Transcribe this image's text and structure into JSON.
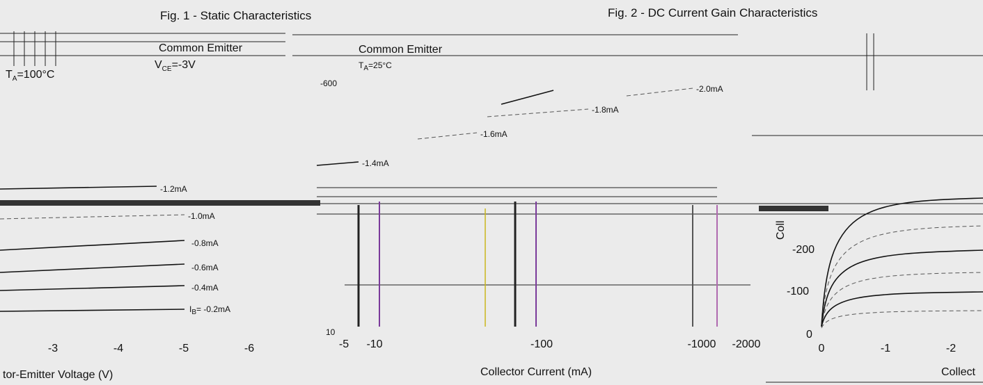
{
  "fig1": {
    "title": "Fig. 1 - Static Characteristics",
    "mode": "Common Emitter",
    "temp": {
      "sym": "T",
      "sub": "A",
      "rest": "=100°C"
    },
    "ib_labels": [
      "-1.2mA",
      "-1.0mA",
      "-0.8mA",
      "-0.6mA",
      "-0.4mA"
    ],
    "ib_first": {
      "sym": "I",
      "sub": "B",
      "rest": "= -0.2mA"
    },
    "x_ticks": [
      "-3",
      "-4",
      "-5",
      "-6"
    ],
    "x_label": "tor-Emitter Voltage (V)"
  },
  "fig2": {
    "title": "Fig. 2 - DC Current Gain Characteristics",
    "mode": "Common Emitter",
    "vce": {
      "sym": "V",
      "sub": "CE",
      "rest": "=-3V"
    },
    "temp": {
      "sym": "T",
      "sub": "A",
      "rest": "=25°C"
    },
    "y_ticks": [
      "-600",
      "10"
    ],
    "x_ticks": [
      "-5",
      "-10",
      "-100",
      "-1000",
      "-2000"
    ],
    "x_label": "Collector Current (mA)"
  },
  "fig3": {
    "ib_labels": [
      "-2.0mA",
      "-1.8mA",
      "-1.6mA",
      "-1.4mA"
    ],
    "y_ticks": [
      "-200",
      "-100",
      "0"
    ],
    "x_ticks": [
      "0",
      "-1",
      "-2"
    ],
    "y_label": "Coll",
    "x_label": "Collect"
  }
}
